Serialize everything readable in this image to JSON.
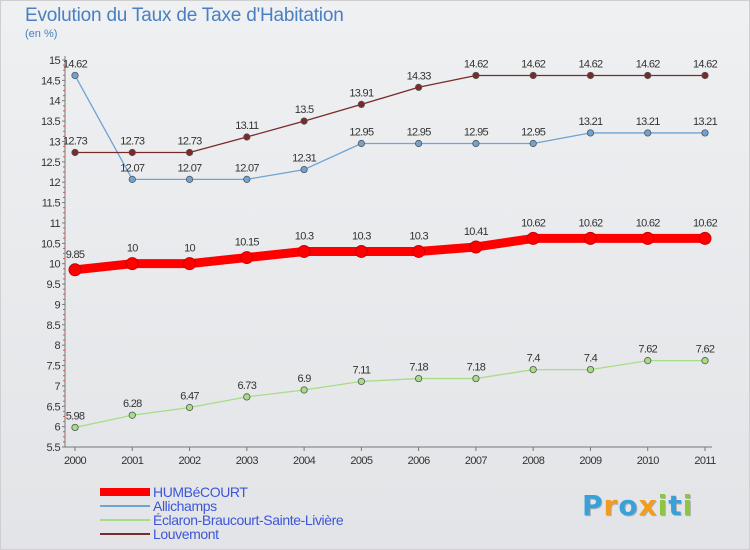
{
  "title": "Evolution du Taux de Taxe d'Habitation",
  "subtitle": "(en %)",
  "logo": {
    "text": "Proxiti",
    "colors": [
      "#3aa0d8",
      "#f29c1f",
      "#3aa0d8",
      "#f29c1f",
      "#8dc63f",
      "#3aa0d8",
      "#8dc63f"
    ]
  },
  "chart_data": {
    "type": "line",
    "title": "Evolution du Taux de Taxe d'Habitation",
    "ylabel": "(en %)",
    "xlabel": "",
    "x": [
      "2000",
      "2001",
      "2002",
      "2003",
      "2004",
      "2005",
      "2006",
      "2007",
      "2008",
      "2009",
      "2010",
      "2011"
    ],
    "ylim": [
      5.5,
      15
    ],
    "yticks": [
      "5.5",
      "6",
      "6.5",
      "7",
      "7.5",
      "8",
      "8.5",
      "9",
      "9.5",
      "10",
      "10.5",
      "11",
      "11.5",
      "12",
      "12.5",
      "13",
      "13.5",
      "14",
      "14.5",
      "15"
    ],
    "grid": false,
    "legend_position": "bottom-left",
    "series": [
      {
        "name": "HUMBéCOURT",
        "color": "#ff0000",
        "bold": true,
        "values": [
          9.85,
          10,
          10,
          10.15,
          10.3,
          10.3,
          10.3,
          10.41,
          10.62,
          10.62,
          10.62,
          10.62
        ],
        "labels": [
          "9.85",
          "10",
          "10",
          "10.15",
          "10.3",
          "10.3",
          "10.3",
          "10.41",
          "10.62",
          "10.62",
          "10.62",
          "10.62"
        ]
      },
      {
        "name": "Allichamps",
        "color": "#6fa3d3",
        "bold": false,
        "values": [
          14.62,
          12.07,
          12.07,
          12.07,
          12.31,
          12.95,
          12.95,
          12.95,
          12.95,
          13.21,
          13.21,
          13.21
        ],
        "labels": [
          "14.62",
          "12.07",
          "12.07",
          "12.07",
          "12.31",
          "12.95",
          "12.95",
          "12.95",
          "12.95",
          "13.21",
          "13.21",
          "13.21"
        ]
      },
      {
        "name": "Éclaron-Braucourt-Sainte-Livière",
        "color": "#a6dd86",
        "bold": false,
        "values": [
          5.98,
          6.28,
          6.47,
          6.73,
          6.9,
          7.11,
          7.18,
          7.18,
          7.4,
          7.4,
          7.62,
          7.62
        ],
        "labels": [
          "5.98",
          "6.28",
          "6.47",
          "6.73",
          "6.9",
          "7.11",
          "7.18",
          "7.18",
          "7.4",
          "7.4",
          "7.62",
          "7.62"
        ]
      },
      {
        "name": "Louvemont",
        "color": "#7a2a2a",
        "bold": false,
        "values": [
          12.73,
          12.73,
          12.73,
          13.11,
          13.5,
          13.91,
          14.33,
          14.62,
          14.62,
          14.62,
          14.62,
          14.62
        ],
        "labels": [
          "12.73",
          "12.73",
          "12.73",
          "13.11",
          "13.5",
          "13.91",
          "14.33",
          "14.62",
          "14.62",
          "14.62",
          "14.62",
          "14.62"
        ]
      }
    ]
  }
}
